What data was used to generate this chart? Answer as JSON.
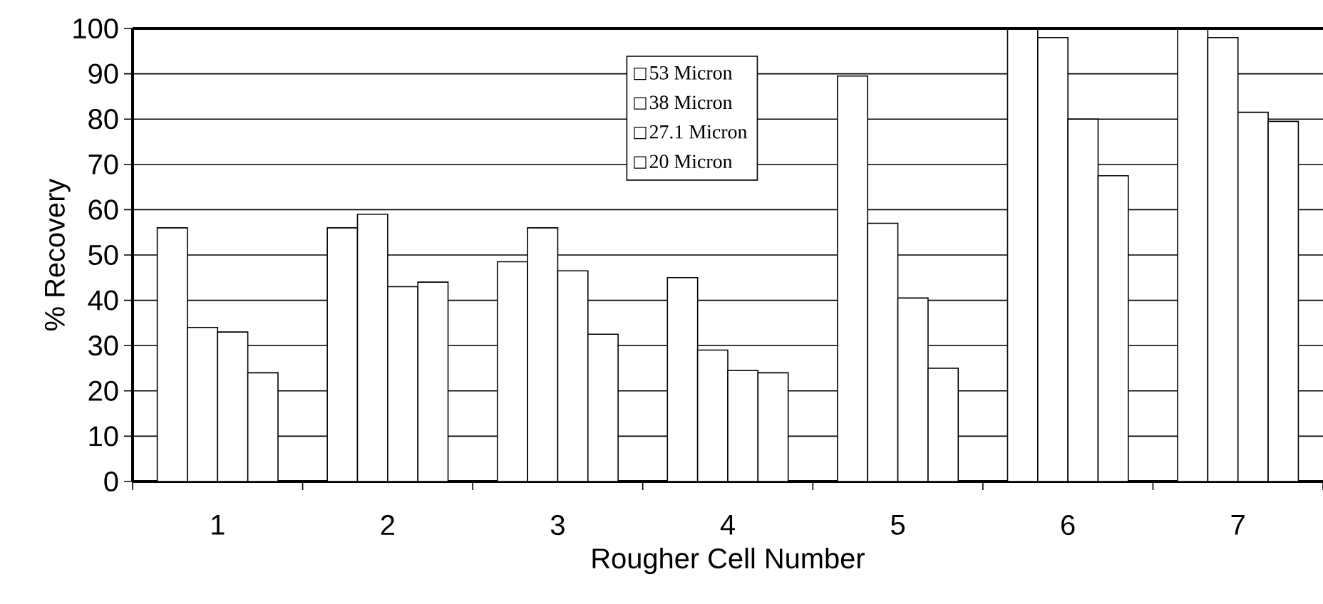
{
  "chart_data": {
    "type": "bar",
    "xlabel": "Rougher Cell Number",
    "ylabel": "% Recovery",
    "categories": [
      "1",
      "2",
      "3",
      "4",
      "5",
      "6",
      "7"
    ],
    "series": [
      {
        "name": "53 Micron",
        "color": "#ffffff",
        "values": [
          56,
          56,
          48.5,
          45,
          89.5,
          100,
          100
        ]
      },
      {
        "name": "38 Micron",
        "color": "#ffffff",
        "values": [
          34,
          59,
          56,
          29,
          57,
          98,
          98
        ]
      },
      {
        "name": "27.1 Micron",
        "color": "#ffffff",
        "values": [
          33,
          43,
          46.5,
          24.5,
          40.5,
          80,
          81.5
        ]
      },
      {
        "name": "20 Micron",
        "color": "#ffffff",
        "values": [
          24,
          44,
          32.5,
          24,
          25,
          67.5,
          79.5
        ]
      }
    ],
    "ylim": [
      0,
      100
    ],
    "yticks": [
      0,
      10,
      20,
      30,
      40,
      50,
      60,
      70,
      80,
      90,
      100
    ],
    "grid": "y",
    "legend": "top"
  }
}
